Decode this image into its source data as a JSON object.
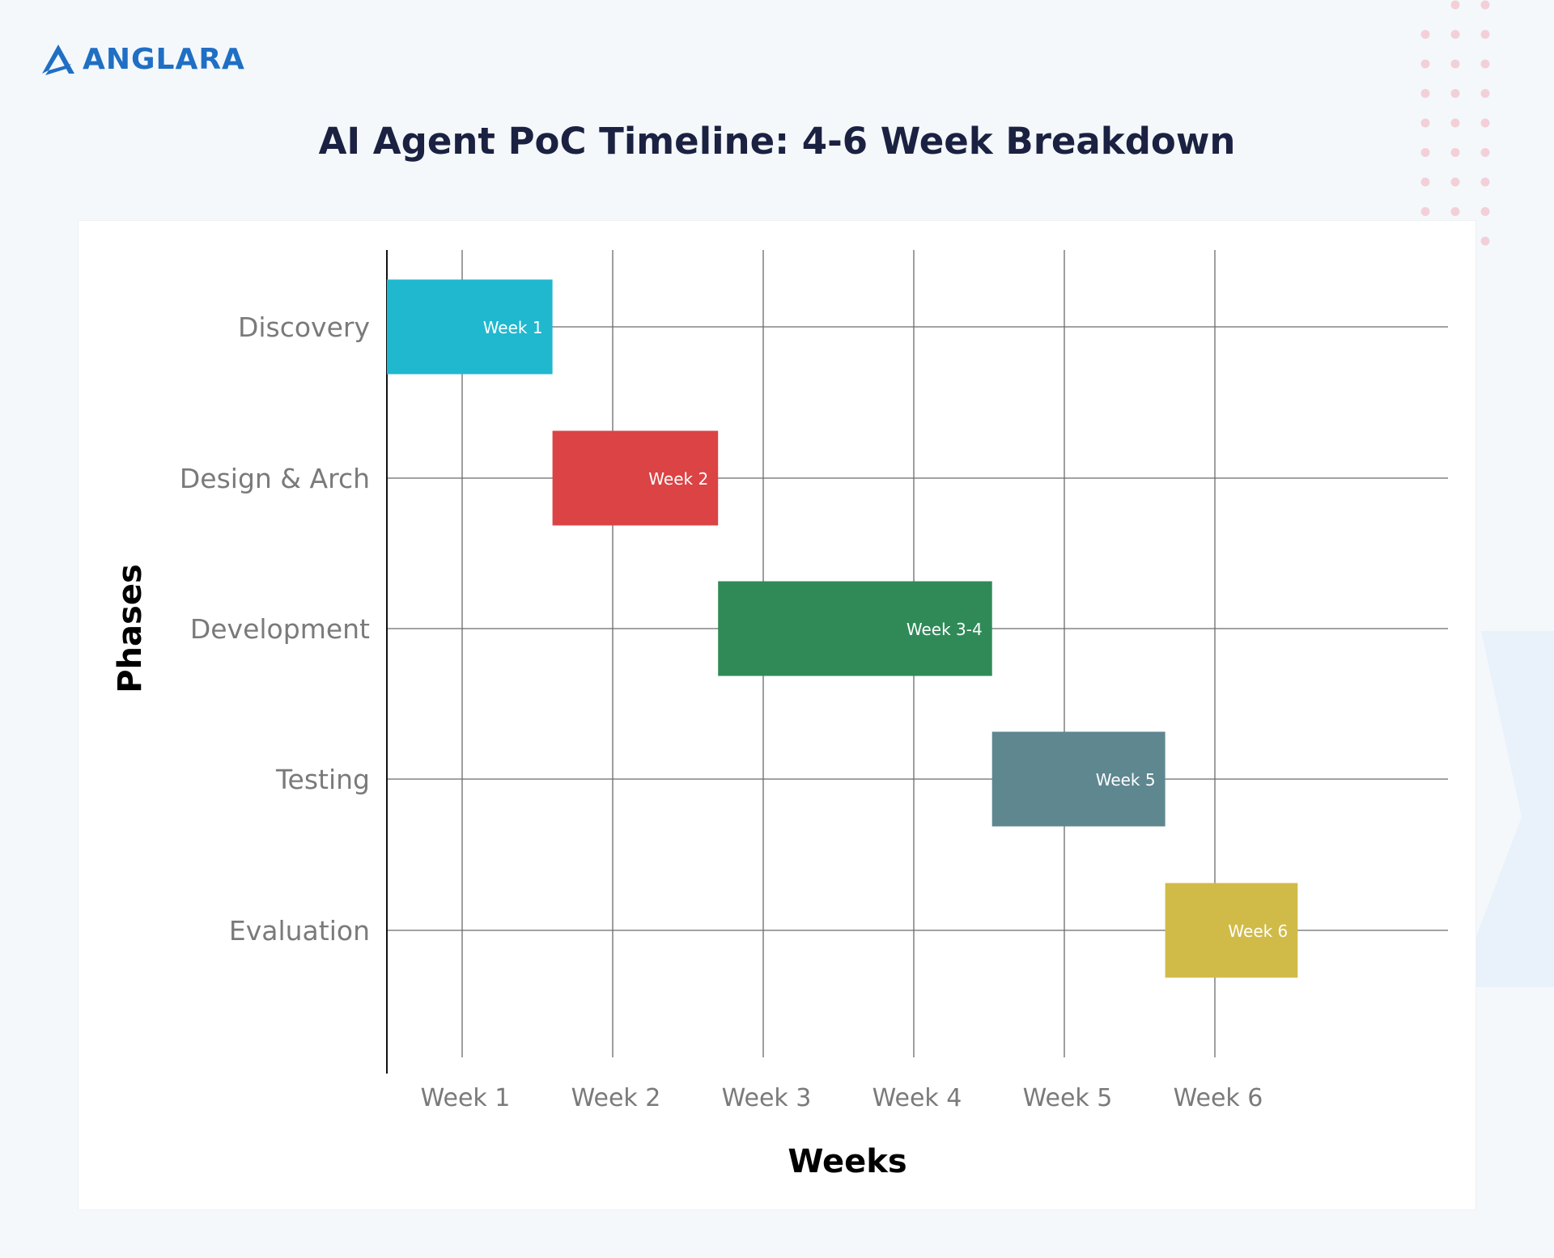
{
  "brand": {
    "logo_text": "ANGLARA",
    "logo_color": "#1f6fc4"
  },
  "page_title": "AI Agent PoC Timeline: 4-6 Week Breakdown",
  "chart_data": {
    "type": "bar",
    "subtype": "gantt",
    "orientation": "horizontal",
    "xlabel": "Weeks",
    "ylabel": "Phases",
    "x_ticks": [
      1,
      2,
      3,
      4,
      5,
      6
    ],
    "x_tick_labels": [
      "Week 1",
      "Week 2",
      "Week 3",
      "Week 4",
      "Week 5",
      "Week 6"
    ],
    "xlim": [
      0.5,
      7.6
    ],
    "grid": true,
    "categories": [
      "Discovery",
      "Design & Arch",
      "Development",
      "Testing",
      "Evaluation"
    ],
    "tasks": [
      {
        "phase": "Discovery",
        "start": 0.5,
        "end": 1.6,
        "label": "Week 1",
        "color": "#1fb8cf"
      },
      {
        "phase": "Design & Arch",
        "start": 1.6,
        "end": 2.7,
        "label": "Week 2",
        "color": "#db4345"
      },
      {
        "phase": "Development",
        "start": 2.7,
        "end": 4.52,
        "label": "Week 3-4",
        "color": "#2f8a57"
      },
      {
        "phase": "Testing",
        "start": 4.52,
        "end": 5.67,
        "label": "Week 5",
        "color": "#5e8790"
      },
      {
        "phase": "Evaluation",
        "start": 5.67,
        "end": 6.55,
        "label": "Week 6",
        "color": "#d0bb48"
      }
    ],
    "colors": {
      "grid": "#6b6b6b",
      "axis": "#111111",
      "category_label": "#7a7a7a",
      "tick_label": "#7a7a7a",
      "axis_title": "#000000",
      "bar_label": "#ffffff"
    }
  }
}
